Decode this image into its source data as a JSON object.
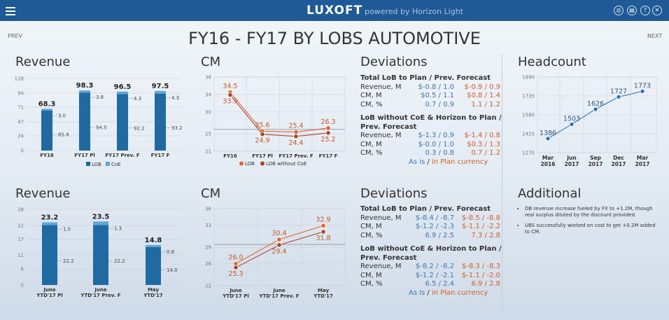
{
  "header": {
    "brand": "LUXOFT",
    "powered": "powered by Horizon Light"
  },
  "nav": {
    "prev": "PREV",
    "next": "NEXT"
  },
  "page_title": "FY16 - FY17 BY LOBS AUTOMOTIVE",
  "sections": {
    "revenue": "Revenue",
    "cm": "CM",
    "deviations": "Deviations",
    "headcount": "Headcount",
    "additional": "Additional"
  },
  "chart_data": [
    {
      "id": "rev1",
      "type": "bar",
      "title": "Revenue",
      "categories": [
        "FY16",
        "FY17 Pl",
        "FY17 Prev. F",
        "FY17 F"
      ],
      "series": [
        {
          "name": "LOB",
          "values": [
            65.4,
            94.5,
            92.2,
            93.2
          ]
        },
        {
          "name": "CoE",
          "values": [
            3.0,
            3.8,
            4.3,
            4.3
          ]
        }
      ],
      "totals": [
        68.3,
        98.3,
        96.5,
        97.5
      ],
      "ylim": [
        0,
        118
      ],
      "yticks": [
        0,
        24,
        47,
        71,
        94,
        118
      ],
      "legend": "bottom"
    },
    {
      "id": "cm1",
      "type": "line",
      "title": "CM",
      "categories": [
        "FY16",
        "FY17 Pl",
        "FY17 Prev. F",
        "FY17 F"
      ],
      "series": [
        {
          "name": "LOB",
          "values": [
            34.5,
            25.6,
            25.4,
            26.3
          ]
        },
        {
          "name": "LOB without CoE",
          "values": [
            33.9,
            24.9,
            24.4,
            25.2
          ]
        }
      ],
      "ylim": [
        21,
        38
      ],
      "yticks": [
        21,
        25,
        30,
        34,
        38
      ],
      "legend": "bottom"
    },
    {
      "id": "hc",
      "type": "line",
      "title": "Headcount",
      "categories": [
        "Mar 2016",
        "Jun 2017",
        "Sep 2017",
        "Dec 2017",
        "Mar 2017"
      ],
      "values": [
        1386,
        1503,
        1626,
        1727,
        1773
      ],
      "ylim": [
        1270,
        1890
      ],
      "yticks": [
        1270,
        1425,
        1580,
        1735,
        1890
      ]
    },
    {
      "id": "rev2",
      "type": "bar",
      "title": "Revenue",
      "categories": [
        "June YTD'17 Pl",
        "June YTD'17 Prev. F",
        "May YTD'17"
      ],
      "series": [
        {
          "name": "LOB",
          "values": [
            22.2,
            22.2,
            14.0
          ]
        },
        {
          "name": "CoE",
          "values": [
            1.0,
            1.3,
            0.8
          ]
        }
      ],
      "totals": [
        23.2,
        23.5,
        14.8
      ],
      "ylim": [
        0,
        28
      ],
      "yticks": [
        0,
        6,
        11,
        17,
        22,
        28
      ]
    },
    {
      "id": "cm2",
      "type": "line",
      "title": "CM",
      "categories": [
        "June YTD'17 Pl",
        "June YTD'17 Prev. F",
        "May YTD'17"
      ],
      "series": [
        {
          "name": "LOB",
          "values": [
            26.0,
            30.4,
            32.9
          ]
        },
        {
          "name": "LOB without CoE",
          "values": [
            25.3,
            29.4,
            31.8
          ]
        }
      ],
      "ylim": [
        22,
        36
      ],
      "yticks": [
        22,
        26,
        29,
        33,
        36
      ]
    }
  ],
  "deviations1": {
    "group1": {
      "title_line1": "Total LoB to Plan / Prev. Forecast",
      "rows": [
        {
          "label": "Revenue, M",
          "v1": "$-0.8 / 1.0",
          "v2": "$-0.9 / 0.9"
        },
        {
          "label": "CM, M",
          "v1": "$0.5 / 1.1",
          "v2": "$0.8 / 1.4"
        },
        {
          "label": "CM, %",
          "v1": "0.7 / 0.9",
          "v2": "1.1 / 1.2"
        }
      ]
    },
    "group2": {
      "title_line1": "LoB without CoE & Horizon to Plan /",
      "title_line2": "Prev. Forecast",
      "rows": [
        {
          "label": "Revenue, M",
          "v1": "$-1.3 / 0.9",
          "v2": "$-1.4 / 0.8"
        },
        {
          "label": "CM, M",
          "v1": "$-0.0 / 1.0",
          "v2": "$0.3 / 1.3"
        },
        {
          "label": "CM, %",
          "v1": "0.3 / 0.8",
          "v2": "0.7 / 1.2"
        }
      ]
    },
    "footer": {
      "as_is": "As is",
      "sep": " / ",
      "in_plan": "in Plan currency"
    }
  },
  "deviations2": {
    "group1": {
      "title_line1": "Total LoB to Plan / Prev. Forecast",
      "rows": [
        {
          "label": "Revenue, M",
          "v1": "$-8.4 / -8.7",
          "v2": "$-8.5 / -8.8"
        },
        {
          "label": "CM, M",
          "v1": "$-1.2 / -2.3",
          "v2": "$-1.1 / -2.2"
        },
        {
          "label": "CM, %",
          "v1": "6.9 / 2.5",
          "v2": "7.3 / 2.8"
        }
      ]
    },
    "group2": {
      "title_line1": "LoB without CoE & Horizon to Plan /",
      "title_line2": "Prev. Forecast",
      "rows": [
        {
          "label": "Revenue, M",
          "v1": "$-8.2 / -8.2",
          "v2": "$-8.3 / -8.3"
        },
        {
          "label": "CM, M",
          "v1": "$-1.2 / -2.1",
          "v2": "$-1.1 / -2.0"
        },
        {
          "label": "CM, %",
          "v1": "6.5 / 2.4",
          "v2": "6.9 / 2.8"
        }
      ]
    },
    "footer": {
      "as_is": "As is",
      "sep": " / ",
      "in_plan": "in Plan currency"
    }
  },
  "additional_notes": [
    "DB revenue increase fueled by FX to +1.2M, though real surplus diluted by the discount provided.",
    "UBS successfully worked on cost to get +0.2M added to CM."
  ],
  "colors": {
    "header": "#1f5a96",
    "lob": "#1f6aa3",
    "coe": "#5fa6d8",
    "line_orange": "#e5622b",
    "line_dark": "#a9442a",
    "hc": "#2770b4",
    "blue_text": "#3f76b8",
    "orange_text": "#d35f2a"
  }
}
